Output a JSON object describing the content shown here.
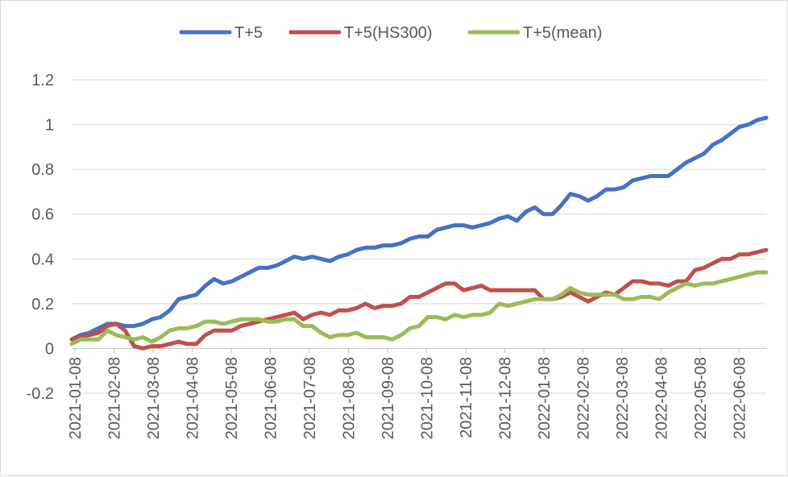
{
  "chart_data": {
    "type": "line",
    "title": "",
    "xlabel": "",
    "ylabel": "",
    "ylim": [
      -0.2,
      1.2
    ],
    "y_ticks": [
      "-0.2",
      "0",
      "0.2",
      "0.4",
      "0.6",
      "0.8",
      "1",
      "1.2"
    ],
    "x_tick_labels": [
      "2021-01-08",
      "2021-02-08",
      "2021-03-08",
      "2021-04-08",
      "2021-05-08",
      "2021-06-08",
      "2021-07-08",
      "2021-08-08",
      "2021-09-08",
      "2021-10-08",
      "2021-11-08",
      "2021-12-08",
      "2022-01-08",
      "2022-02-08",
      "2022-03-08",
      "2022-04-08",
      "2022-05-08",
      "2022-06-08"
    ],
    "grid": "horizontal",
    "legend_position": "top",
    "series": [
      {
        "name": "T+5",
        "color": "#4472C4",
        "values": [
          0.04,
          0.06,
          0.07,
          0.09,
          0.11,
          0.11,
          0.1,
          0.1,
          0.11,
          0.13,
          0.14,
          0.17,
          0.22,
          0.23,
          0.24,
          0.28,
          0.31,
          0.29,
          0.3,
          0.32,
          0.34,
          0.36,
          0.36,
          0.37,
          0.39,
          0.41,
          0.4,
          0.41,
          0.4,
          0.39,
          0.41,
          0.42,
          0.44,
          0.45,
          0.45,
          0.46,
          0.46,
          0.47,
          0.49,
          0.5,
          0.5,
          0.53,
          0.54,
          0.55,
          0.55,
          0.54,
          0.55,
          0.56,
          0.58,
          0.59,
          0.57,
          0.61,
          0.63,
          0.6,
          0.6,
          0.64,
          0.69,
          0.68,
          0.66,
          0.68,
          0.71,
          0.71,
          0.72,
          0.75,
          0.76,
          0.77,
          0.77,
          0.77,
          0.8,
          0.83,
          0.85,
          0.87,
          0.91,
          0.93,
          0.96,
          0.99,
          1.0,
          1.02,
          1.03
        ]
      },
      {
        "name": "T+5(HS300)",
        "color": "#C0504D",
        "values": [
          0.04,
          0.05,
          0.06,
          0.07,
          0.1,
          0.11,
          0.08,
          0.01,
          0.0,
          0.01,
          0.01,
          0.02,
          0.03,
          0.02,
          0.02,
          0.06,
          0.08,
          0.08,
          0.08,
          0.1,
          0.11,
          0.12,
          0.13,
          0.14,
          0.15,
          0.16,
          0.13,
          0.15,
          0.16,
          0.15,
          0.17,
          0.17,
          0.18,
          0.2,
          0.18,
          0.19,
          0.19,
          0.2,
          0.23,
          0.23,
          0.25,
          0.27,
          0.29,
          0.29,
          0.26,
          0.27,
          0.28,
          0.26,
          0.26,
          0.26,
          0.26,
          0.26,
          0.26,
          0.22,
          0.22,
          0.23,
          0.25,
          0.23,
          0.21,
          0.23,
          0.25,
          0.24,
          0.27,
          0.3,
          0.3,
          0.29,
          0.29,
          0.28,
          0.3,
          0.3,
          0.35,
          0.36,
          0.38,
          0.4,
          0.4,
          0.42,
          0.42,
          0.43,
          0.44
        ]
      },
      {
        "name": "T+5(mean)",
        "color": "#9BBB59",
        "values": [
          0.02,
          0.04,
          0.04,
          0.04,
          0.08,
          0.06,
          0.05,
          0.04,
          0.05,
          0.03,
          0.05,
          0.08,
          0.09,
          0.09,
          0.1,
          0.12,
          0.12,
          0.11,
          0.12,
          0.13,
          0.13,
          0.13,
          0.12,
          0.12,
          0.13,
          0.13,
          0.1,
          0.1,
          0.07,
          0.05,
          0.06,
          0.06,
          0.07,
          0.05,
          0.05,
          0.05,
          0.04,
          0.06,
          0.09,
          0.1,
          0.14,
          0.14,
          0.13,
          0.15,
          0.14,
          0.15,
          0.15,
          0.16,
          0.2,
          0.19,
          0.2,
          0.21,
          0.22,
          0.22,
          0.22,
          0.24,
          0.27,
          0.25,
          0.24,
          0.24,
          0.24,
          0.24,
          0.22,
          0.22,
          0.23,
          0.23,
          0.22,
          0.25,
          0.27,
          0.29,
          0.28,
          0.29,
          0.29,
          0.3,
          0.31,
          0.32,
          0.33,
          0.34,
          0.34
        ]
      }
    ]
  }
}
